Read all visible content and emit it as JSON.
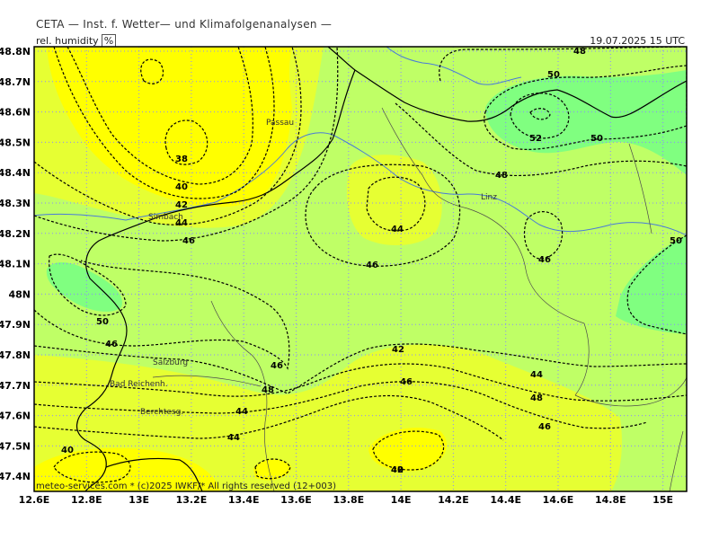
{
  "header": {
    "title": "CETA — Inst. f. Wetter— und Klimafolgenanalysen —",
    "parameter": "rel. humidity",
    "unit": "%",
    "valid_time": "19.07.2025 15 UTC"
  },
  "footer": {
    "copyright": "meteo-services.com * (c)2025 IWKF/* All rights reserved (12+003)"
  },
  "axes": {
    "lon_ticks": [
      "12.6E",
      "12.8E",
      "13E",
      "13.2E",
      "13.4E",
      "13.6E",
      "13.8E",
      "14E",
      "14.2E",
      "14.4E",
      "14.6E",
      "14.8E",
      "15E"
    ],
    "lat_ticks": [
      "48.8N",
      "48.7N",
      "48.6N",
      "48.5N",
      "48.4N",
      "48.3N",
      "48.2N",
      "48.1N",
      "48N",
      "47.9N",
      "47.8N",
      "47.7N",
      "47.6N",
      "47.5N",
      "47.4N"
    ]
  },
  "cities": [
    "Passau",
    "Linz",
    "Simbach",
    "Salzburg",
    "Bad Reichenh.",
    "Berchtesg."
  ],
  "contour_labels": [
    "48",
    "50",
    "52",
    "50",
    "48",
    "38",
    "40",
    "42",
    "44",
    "46",
    "44",
    "46",
    "46",
    "50",
    "50",
    "46",
    "46",
    "48",
    "44",
    "42",
    "46",
    "48",
    "46",
    "44",
    "44",
    "42",
    "40",
    "40"
  ],
  "colors": {
    "yellow": "#ffff00",
    "light_yellow": "#e6ff33",
    "light_green": "#bfff66",
    "green": "#80ff80"
  }
}
